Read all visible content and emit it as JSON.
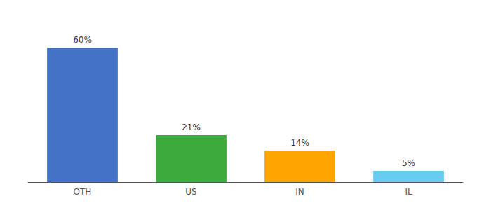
{
  "chart_data": {
    "type": "bar",
    "categories": [
      "OTH",
      "US",
      "IN",
      "IL"
    ],
    "values": [
      60,
      21,
      14,
      5
    ],
    "value_labels": [
      "60%",
      "21%",
      "14%",
      "5%"
    ],
    "data_labels": true,
    "colors": [
      "#4472C4",
      "#3DAA3D",
      "#FFA500",
      "#66CCEE"
    ],
    "ylim": [
      0,
      72
    ],
    "grid": false,
    "tick_labels": "x"
  }
}
